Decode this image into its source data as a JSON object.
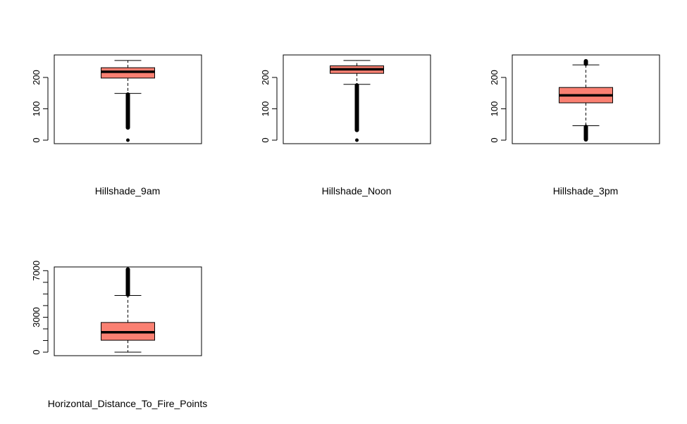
{
  "chart_data": [
    {
      "type": "boxplot",
      "xlabel": "Hillshade_9am",
      "ylim": [
        0,
        265
      ],
      "y_ticks": [
        0,
        100,
        200
      ],
      "y_tick_labels": [
        "0",
        "100",
        "200"
      ],
      "box": {
        "lower_whisker": 149,
        "q1": 198,
        "median": 218,
        "q3": 231,
        "upper_whisker": 254
      },
      "outliers": [
        [
          38,
          148
        ],
        [
          0
        ]
      ],
      "box_color": "#fa8072"
    },
    {
      "type": "boxplot",
      "xlabel": "Hillshade_Noon",
      "ylim": [
        0,
        265
      ],
      "y_ticks": [
        0,
        100,
        200
      ],
      "y_tick_labels": [
        "0",
        "100",
        "200"
      ],
      "box": {
        "lower_whisker": 178,
        "q1": 213,
        "median": 226,
        "q3": 237,
        "upper_whisker": 254
      },
      "outliers": [
        [
          30,
          177
        ],
        [
          0
        ]
      ],
      "box_color": "#fa8072"
    },
    {
      "type": "boxplot",
      "xlabel": "Hillshade_3pm",
      "ylim": [
        0,
        265
      ],
      "y_ticks": [
        0,
        100,
        200
      ],
      "y_tick_labels": [
        "0",
        "100",
        "200"
      ],
      "box": {
        "lower_whisker": 46,
        "q1": 119,
        "median": 143,
        "q3": 168,
        "upper_whisker": 240
      },
      "outliers": [
        [
          0,
          45
        ],
        [
          241,
          254
        ]
      ],
      "box_color": "#fa8072"
    },
    {
      "type": "boxplot",
      "xlabel": "Horizontal_Distance_To_Fire_Points",
      "ylim": [
        0,
        7200
      ],
      "y_ticks": [
        0,
        1000,
        2000,
        3000,
        4000,
        5000,
        6000,
        7000
      ],
      "y_tick_labels": [
        "0",
        "",
        "",
        "3000",
        "",
        "",
        "",
        "7000"
      ],
      "box": {
        "lower_whisker": 0,
        "q1": 1024,
        "median": 1710,
        "q3": 2550,
        "upper_whisker": 4870
      },
      "outliers": [
        [
          4880,
          7170
        ]
      ],
      "box_color": "#fa8072"
    }
  ]
}
